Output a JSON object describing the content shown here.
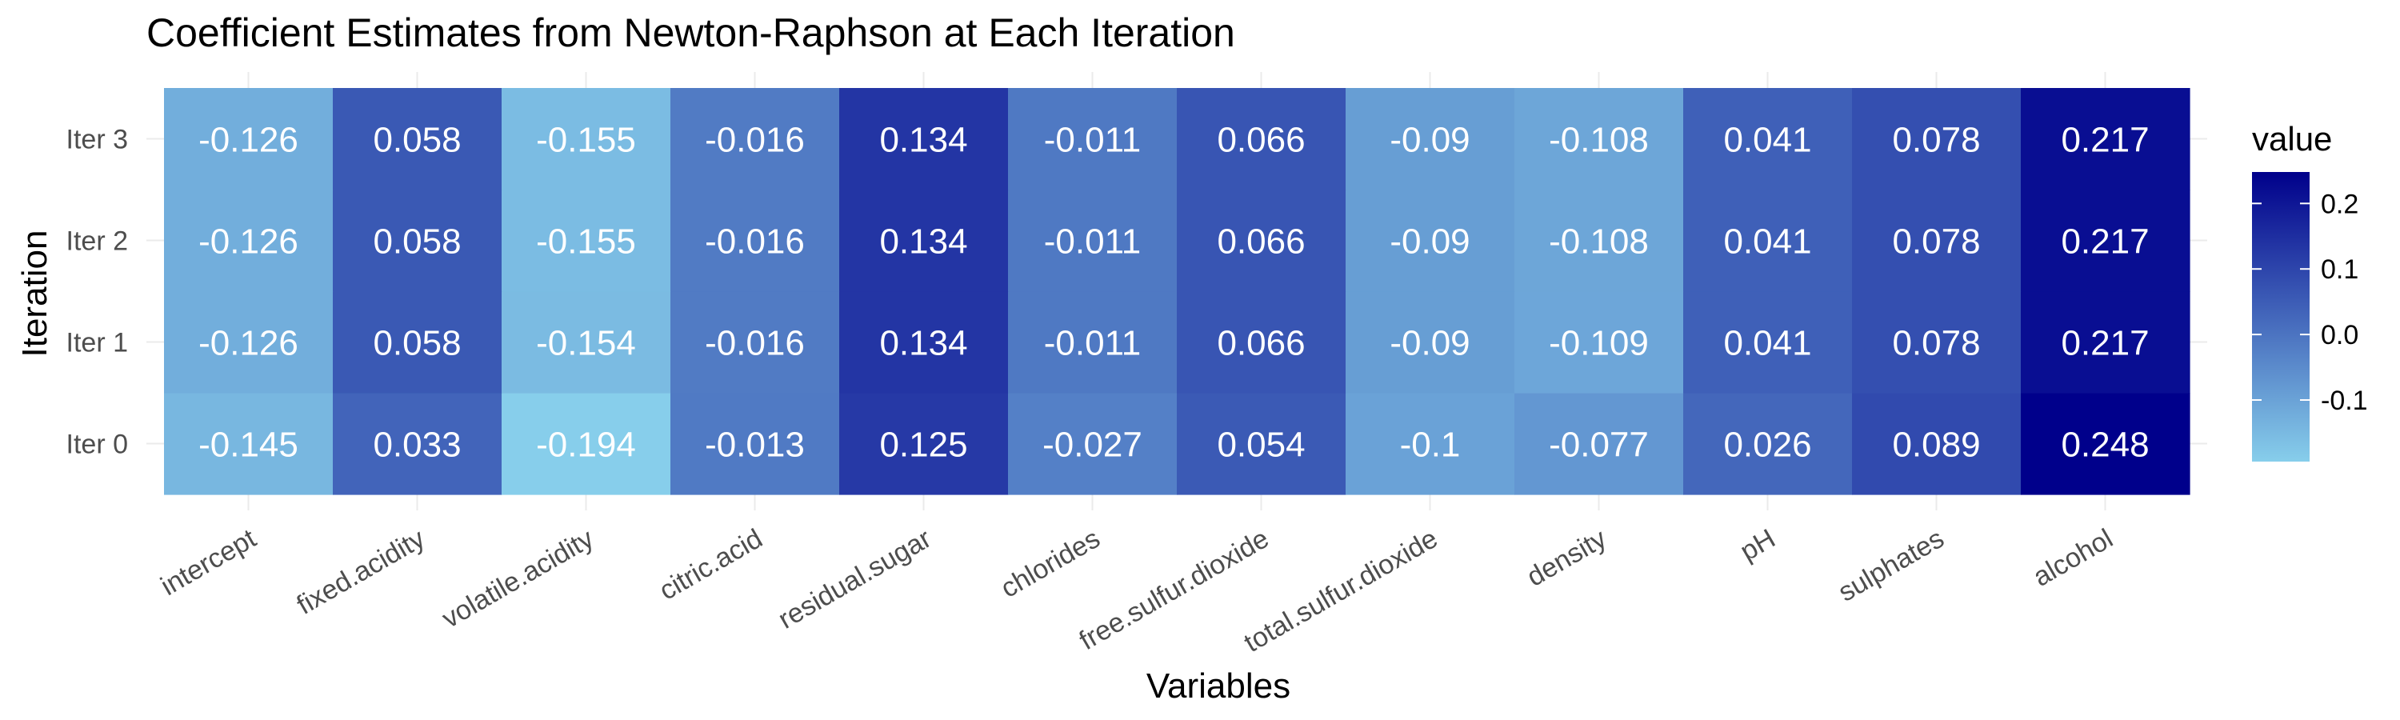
{
  "chart_data": {
    "type": "heatmap",
    "title": "Coefficient Estimates from Newton-Raphson at Each Iteration",
    "xlabel": "Variables",
    "ylabel": "Iteration",
    "x_categories": [
      "intercept",
      "fixed.acidity",
      "volatile.acidity",
      "citric.acid",
      "residual.sugar",
      "chlorides",
      "free.sulfur.dioxide",
      "total.sulfur.dioxide",
      "density",
      "pH",
      "sulphates",
      "alcohol"
    ],
    "y_categories": [
      "Iter 0",
      "Iter 1",
      "Iter 2",
      "Iter 3"
    ],
    "values": [
      [
        -0.145,
        0.033,
        -0.194,
        -0.013,
        0.125,
        -0.027,
        0.054,
        -0.1,
        -0.077,
        0.026,
        0.089,
        0.248
      ],
      [
        -0.126,
        0.058,
        -0.154,
        -0.016,
        0.134,
        -0.011,
        0.066,
        -0.09,
        -0.109,
        0.041,
        0.078,
        0.217
      ],
      [
        -0.126,
        0.058,
        -0.155,
        -0.016,
        0.134,
        -0.011,
        0.066,
        -0.09,
        -0.108,
        0.041,
        0.078,
        0.217
      ],
      [
        -0.126,
        0.058,
        -0.155,
        -0.016,
        0.134,
        -0.011,
        0.066,
        -0.09,
        -0.108,
        0.041,
        0.078,
        0.217
      ]
    ],
    "legend": {
      "title": "value",
      "ticks": [
        -0.1,
        0.0,
        0.1,
        0.2
      ],
      "tick_labels": [
        "-0.1",
        "0.0",
        "0.1",
        "0.2"
      ],
      "placement": "right",
      "range": [
        -0.194,
        0.248
      ]
    },
    "colors": {
      "low": "#87CEEB",
      "high": "#00008B",
      "cell_text": "#ffffff",
      "grid": "#ebebeb",
      "axis_text": "#4d4d4d",
      "title_text": "#000000"
    }
  }
}
